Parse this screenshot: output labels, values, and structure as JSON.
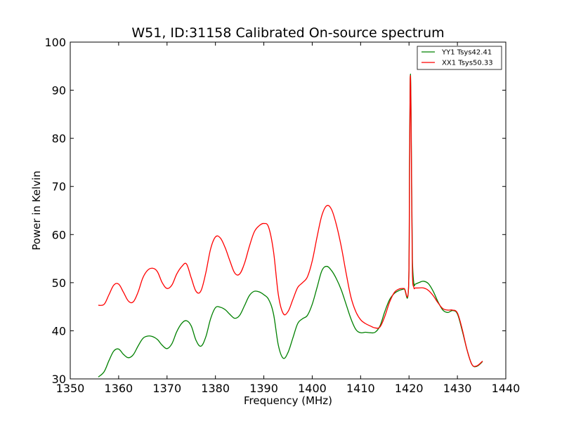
{
  "chart_data": {
    "type": "line",
    "title": "W51, ID:31158 Calibrated On-source spectrum",
    "xlabel": "Frequency (MHz)",
    "ylabel": "Power in Kelvin",
    "xlim": [
      1350,
      1440
    ],
    "ylim": [
      30,
      100
    ],
    "xticks": [
      1350,
      1360,
      1370,
      1380,
      1390,
      1400,
      1410,
      1420,
      1430,
      1440
    ],
    "yticks": [
      30,
      40,
      50,
      60,
      70,
      80,
      90,
      100
    ],
    "grid": false,
    "legend_position": "top-right",
    "series": [
      {
        "name": "YY1 Tsys42.41",
        "color": "#008000",
        "x": [
          1355.8,
          1357,
          1358,
          1359,
          1360,
          1361,
          1362,
          1363,
          1364,
          1365,
          1366,
          1367,
          1368,
          1369,
          1370,
          1371,
          1372,
          1373,
          1374,
          1375,
          1376,
          1377,
          1378,
          1379,
          1380,
          1381,
          1382,
          1383,
          1384,
          1385,
          1386,
          1387,
          1388,
          1389,
          1390,
          1391,
          1392,
          1393,
          1394,
          1395,
          1396,
          1397,
          1398,
          1399,
          1400,
          1401,
          1402,
          1403,
          1404,
          1405,
          1406,
          1407,
          1408,
          1409,
          1410,
          1411,
          1412,
          1413,
          1414,
          1415,
          1416,
          1417,
          1418,
          1419,
          1419.9,
          1420.1,
          1420.25,
          1420.4,
          1420.55,
          1420.7,
          1421,
          1421.3,
          1422,
          1423,
          1424,
          1425,
          1426,
          1427,
          1428,
          1429,
          1430,
          1431,
          1432,
          1433,
          1434,
          1435.2
        ],
        "values": [
          30.4,
          31.5,
          33.8,
          35.8,
          36.2,
          35.1,
          34.4,
          35.0,
          36.8,
          38.4,
          38.9,
          38.8,
          38.2,
          37.0,
          36.3,
          37.3,
          39.8,
          41.5,
          42.1,
          41.0,
          38.0,
          36.8,
          38.7,
          42.5,
          44.8,
          44.9,
          44.4,
          43.4,
          42.6,
          43.2,
          45.2,
          47.3,
          48.2,
          48.1,
          47.5,
          46.5,
          43.5,
          37.0,
          34.3,
          35.5,
          38.5,
          41.5,
          42.5,
          43.2,
          45.5,
          49.0,
          52.5,
          53.4,
          52.5,
          50.8,
          48.5,
          45.5,
          42.5,
          40.3,
          39.6,
          39.7,
          39.6,
          39.7,
          41.0,
          44.0,
          46.5,
          47.8,
          48.4,
          48.7,
          48.9,
          75.0,
          92.5,
          88.0,
          70.0,
          55.0,
          49.8,
          49.7,
          50.0,
          50.3,
          49.8,
          48.2,
          46.0,
          44.3,
          43.8,
          44.2,
          43.5,
          40.0,
          36.0,
          33.0,
          32.6,
          33.6
        ]
      },
      {
        "name": "XX1 Tsys50.33",
        "color": "#ff0000",
        "x": [
          1355.8,
          1357,
          1358,
          1359,
          1360,
          1361,
          1362,
          1363,
          1364,
          1365,
          1366,
          1367,
          1368,
          1369,
          1370,
          1371,
          1372,
          1373,
          1374,
          1375,
          1376,
          1377,
          1378,
          1379,
          1380,
          1381,
          1382,
          1383,
          1384,
          1385,
          1386,
          1387,
          1388,
          1389,
          1390,
          1391,
          1392,
          1393,
          1394,
          1395,
          1396,
          1397,
          1398,
          1399,
          1400,
          1401,
          1402,
          1403,
          1404,
          1405,
          1406,
          1407,
          1408,
          1409,
          1410,
          1411,
          1412,
          1413,
          1414,
          1415,
          1416,
          1417,
          1418,
          1419,
          1419.9,
          1420.1,
          1420.25,
          1420.4,
          1420.55,
          1420.7,
          1421,
          1421.3,
          1422,
          1423,
          1424,
          1425,
          1426,
          1427,
          1428,
          1429,
          1430,
          1431,
          1432,
          1433,
          1434,
          1435.2
        ],
        "values": [
          45.3,
          45.5,
          47.5,
          49.5,
          49.7,
          48.0,
          46.2,
          46.0,
          48.0,
          51.0,
          52.6,
          53.0,
          52.3,
          50.0,
          48.8,
          49.5,
          51.8,
          53.3,
          53.9,
          51.0,
          48.2,
          48.3,
          52.0,
          57.0,
          59.5,
          59.3,
          57.3,
          54.5,
          52.0,
          51.8,
          54.0,
          57.5,
          60.5,
          61.8,
          62.3,
          61.5,
          56.5,
          47.5,
          43.6,
          44.0,
          46.5,
          49.0,
          50.0,
          51.2,
          54.5,
          59.5,
          64.0,
          66.0,
          65.2,
          62.0,
          57.5,
          52.0,
          47.0,
          44.0,
          42.3,
          41.5,
          41.0,
          40.6,
          40.8,
          43.0,
          46.0,
          48.0,
          48.7,
          48.8,
          48.9,
          72.0,
          92.3,
          86.0,
          68.0,
          52.0,
          49.0,
          48.9,
          48.9,
          48.9,
          48.4,
          47.3,
          45.8,
          44.6,
          44.3,
          44.3,
          43.7,
          40.3,
          36.0,
          33.0,
          32.7,
          33.7
        ]
      }
    ]
  }
}
